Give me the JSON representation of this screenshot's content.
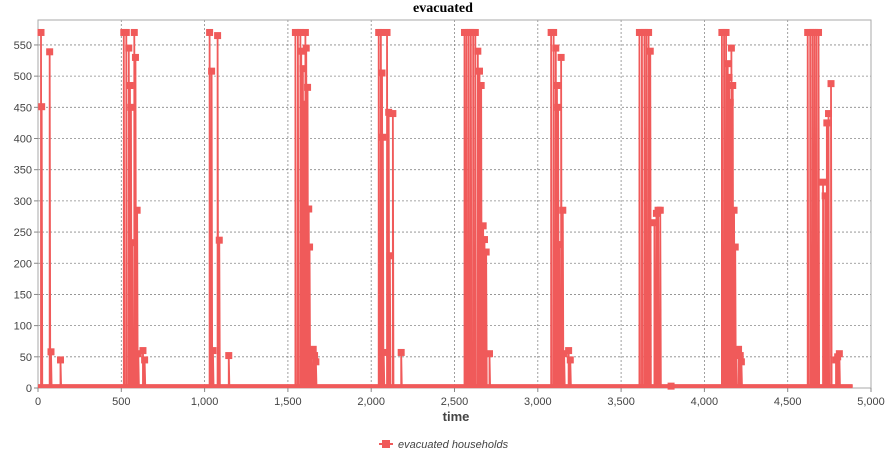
{
  "chart_data": {
    "type": "line",
    "title": "evacuated",
    "xlabel": "time",
    "ylabel": "",
    "xlim": [
      0,
      5000
    ],
    "ylim": [
      0,
      590
    ],
    "x_ticks": [
      0,
      500,
      1000,
      1500,
      2000,
      2500,
      3000,
      3500,
      4000,
      4500,
      5000
    ],
    "x_tick_labels": [
      "0",
      "500",
      "1,000",
      "1,500",
      "2,000",
      "2,500",
      "3,000",
      "3,500",
      "4,000",
      "4,500",
      "5,000"
    ],
    "y_ticks": [
      0,
      50,
      100,
      150,
      200,
      250,
      300,
      350,
      400,
      450,
      500,
      550
    ],
    "y_tick_labels": [
      "0",
      "50",
      "100",
      "150",
      "200",
      "250",
      "300",
      "350",
      "400",
      "450",
      "500",
      "550"
    ],
    "grid": true,
    "legend_position": "bottom-center",
    "color": "#f05a5a",
    "x_end": 4890,
    "series": [
      {
        "name": "evacuated households",
        "points": [
          [
            18,
            570
          ],
          [
            22,
            451
          ],
          [
            70,
            539
          ],
          [
            78,
            58
          ],
          [
            135,
            45
          ],
          [
            515,
            570
          ],
          [
            530,
            570
          ],
          [
            545,
            545
          ],
          [
            552,
            485
          ],
          [
            558,
            450
          ],
          [
            565,
            233
          ],
          [
            578,
            570
          ],
          [
            585,
            530
          ],
          [
            595,
            285
          ],
          [
            602,
            55
          ],
          [
            630,
            60
          ],
          [
            640,
            45
          ],
          [
            1030,
            570
          ],
          [
            1042,
            508
          ],
          [
            1050,
            60
          ],
          [
            1078,
            565
          ],
          [
            1088,
            237
          ],
          [
            1145,
            52
          ],
          [
            1545,
            570
          ],
          [
            1560,
            570
          ],
          [
            1575,
            570
          ],
          [
            1580,
            540
          ],
          [
            1590,
            512
          ],
          [
            1598,
            455
          ],
          [
            1605,
            570
          ],
          [
            1610,
            545
          ],
          [
            1618,
            482
          ],
          [
            1625,
            287
          ],
          [
            1630,
            226
          ],
          [
            1640,
            55
          ],
          [
            1652,
            62
          ],
          [
            1660,
            52
          ],
          [
            1668,
            42
          ],
          [
            2045,
            570
          ],
          [
            2058,
            570
          ],
          [
            2065,
            505
          ],
          [
            2070,
            402
          ],
          [
            2075,
            57
          ],
          [
            2095,
            570
          ],
          [
            2105,
            442
          ],
          [
            2112,
            212
          ],
          [
            2130,
            440
          ],
          [
            2180,
            57
          ],
          [
            2560,
            570
          ],
          [
            2572,
            570
          ],
          [
            2585,
            570
          ],
          [
            2598,
            570
          ],
          [
            2612,
            570
          ],
          [
            2625,
            570
          ],
          [
            2640,
            540
          ],
          [
            2650,
            508
          ],
          [
            2660,
            485
          ],
          [
            2672,
            260
          ],
          [
            2680,
            238
          ],
          [
            2690,
            218
          ],
          [
            2710,
            55
          ],
          [
            3080,
            570
          ],
          [
            3095,
            570
          ],
          [
            3108,
            545
          ],
          [
            3115,
            485
          ],
          [
            3122,
            450
          ],
          [
            3128,
            230
          ],
          [
            3140,
            530
          ],
          [
            3150,
            285
          ],
          [
            3158,
            55
          ],
          [
            3185,
            60
          ],
          [
            3195,
            45
          ],
          [
            3610,
            570
          ],
          [
            3625,
            570
          ],
          [
            3640,
            570
          ],
          [
            3652,
            570
          ],
          [
            3665,
            570
          ],
          [
            3675,
            540
          ],
          [
            3700,
            265
          ],
          [
            3712,
            280
          ],
          [
            3722,
            285
          ],
          [
            3735,
            285
          ],
          [
            3800,
            3
          ],
          [
            4105,
            570
          ],
          [
            4118,
            570
          ],
          [
            4130,
            570
          ],
          [
            4140,
            520
          ],
          [
            4148,
            498
          ],
          [
            4155,
            458
          ],
          [
            4162,
            545
          ],
          [
            4170,
            485
          ],
          [
            4178,
            285
          ],
          [
            4185,
            226
          ],
          [
            4190,
            55
          ],
          [
            4205,
            62
          ],
          [
            4215,
            52
          ],
          [
            4222,
            42
          ],
          [
            4620,
            570
          ],
          [
            4635,
            570
          ],
          [
            4648,
            570
          ],
          [
            4660,
            570
          ],
          [
            4672,
            570
          ],
          [
            4685,
            570
          ],
          [
            4712,
            330
          ],
          [
            4725,
            308
          ],
          [
            4735,
            425
          ],
          [
            4745,
            440
          ],
          [
            4760,
            488
          ],
          [
            4790,
            45
          ],
          [
            4800,
            50
          ],
          [
            4810,
            55
          ]
        ]
      }
    ]
  }
}
